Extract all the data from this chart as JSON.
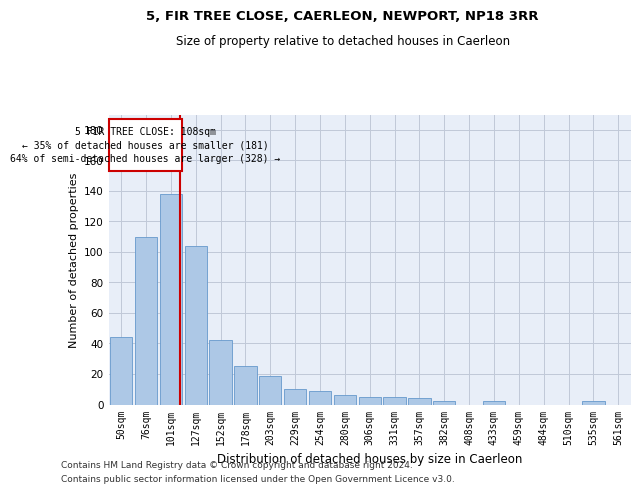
{
  "title": "5, FIR TREE CLOSE, CAERLEON, NEWPORT, NP18 3RR",
  "subtitle": "Size of property relative to detached houses in Caerleon",
  "xlabel": "Distribution of detached houses by size in Caerleon",
  "ylabel": "Number of detached properties",
  "categories": [
    "50sqm",
    "76sqm",
    "101sqm",
    "127sqm",
    "152sqm",
    "178sqm",
    "203sqm",
    "229sqm",
    "254sqm",
    "280sqm",
    "306sqm",
    "331sqm",
    "357sqm",
    "382sqm",
    "408sqm",
    "433sqm",
    "459sqm",
    "484sqm",
    "510sqm",
    "535sqm",
    "561sqm"
  ],
  "values": [
    44,
    110,
    138,
    104,
    42,
    25,
    19,
    10,
    9,
    6,
    5,
    5,
    4,
    2,
    0,
    2,
    0,
    0,
    0,
    2,
    0
  ],
  "bar_color": "#adc8e6",
  "bar_edge_color": "#6699cc",
  "annotation_text_line1": "5 FIR TREE CLOSE: 108sqm",
  "annotation_text_line2": "← 35% of detached houses are smaller (181)",
  "annotation_text_line3": "64% of semi-detached houses are larger (328) →",
  "annotation_box_color": "#cc0000",
  "annotation_bg": "#ffffff",
  "vline_x": 2.38,
  "ylim": [
    0,
    190
  ],
  "yticks": [
    0,
    20,
    40,
    60,
    80,
    100,
    120,
    140,
    160,
    180
  ],
  "background_color": "#e8eef8",
  "grid_color": "#c0c8d8",
  "footnote1": "Contains HM Land Registry data © Crown copyright and database right 2024.",
  "footnote2": "Contains public sector information licensed under the Open Government Licence v3.0."
}
